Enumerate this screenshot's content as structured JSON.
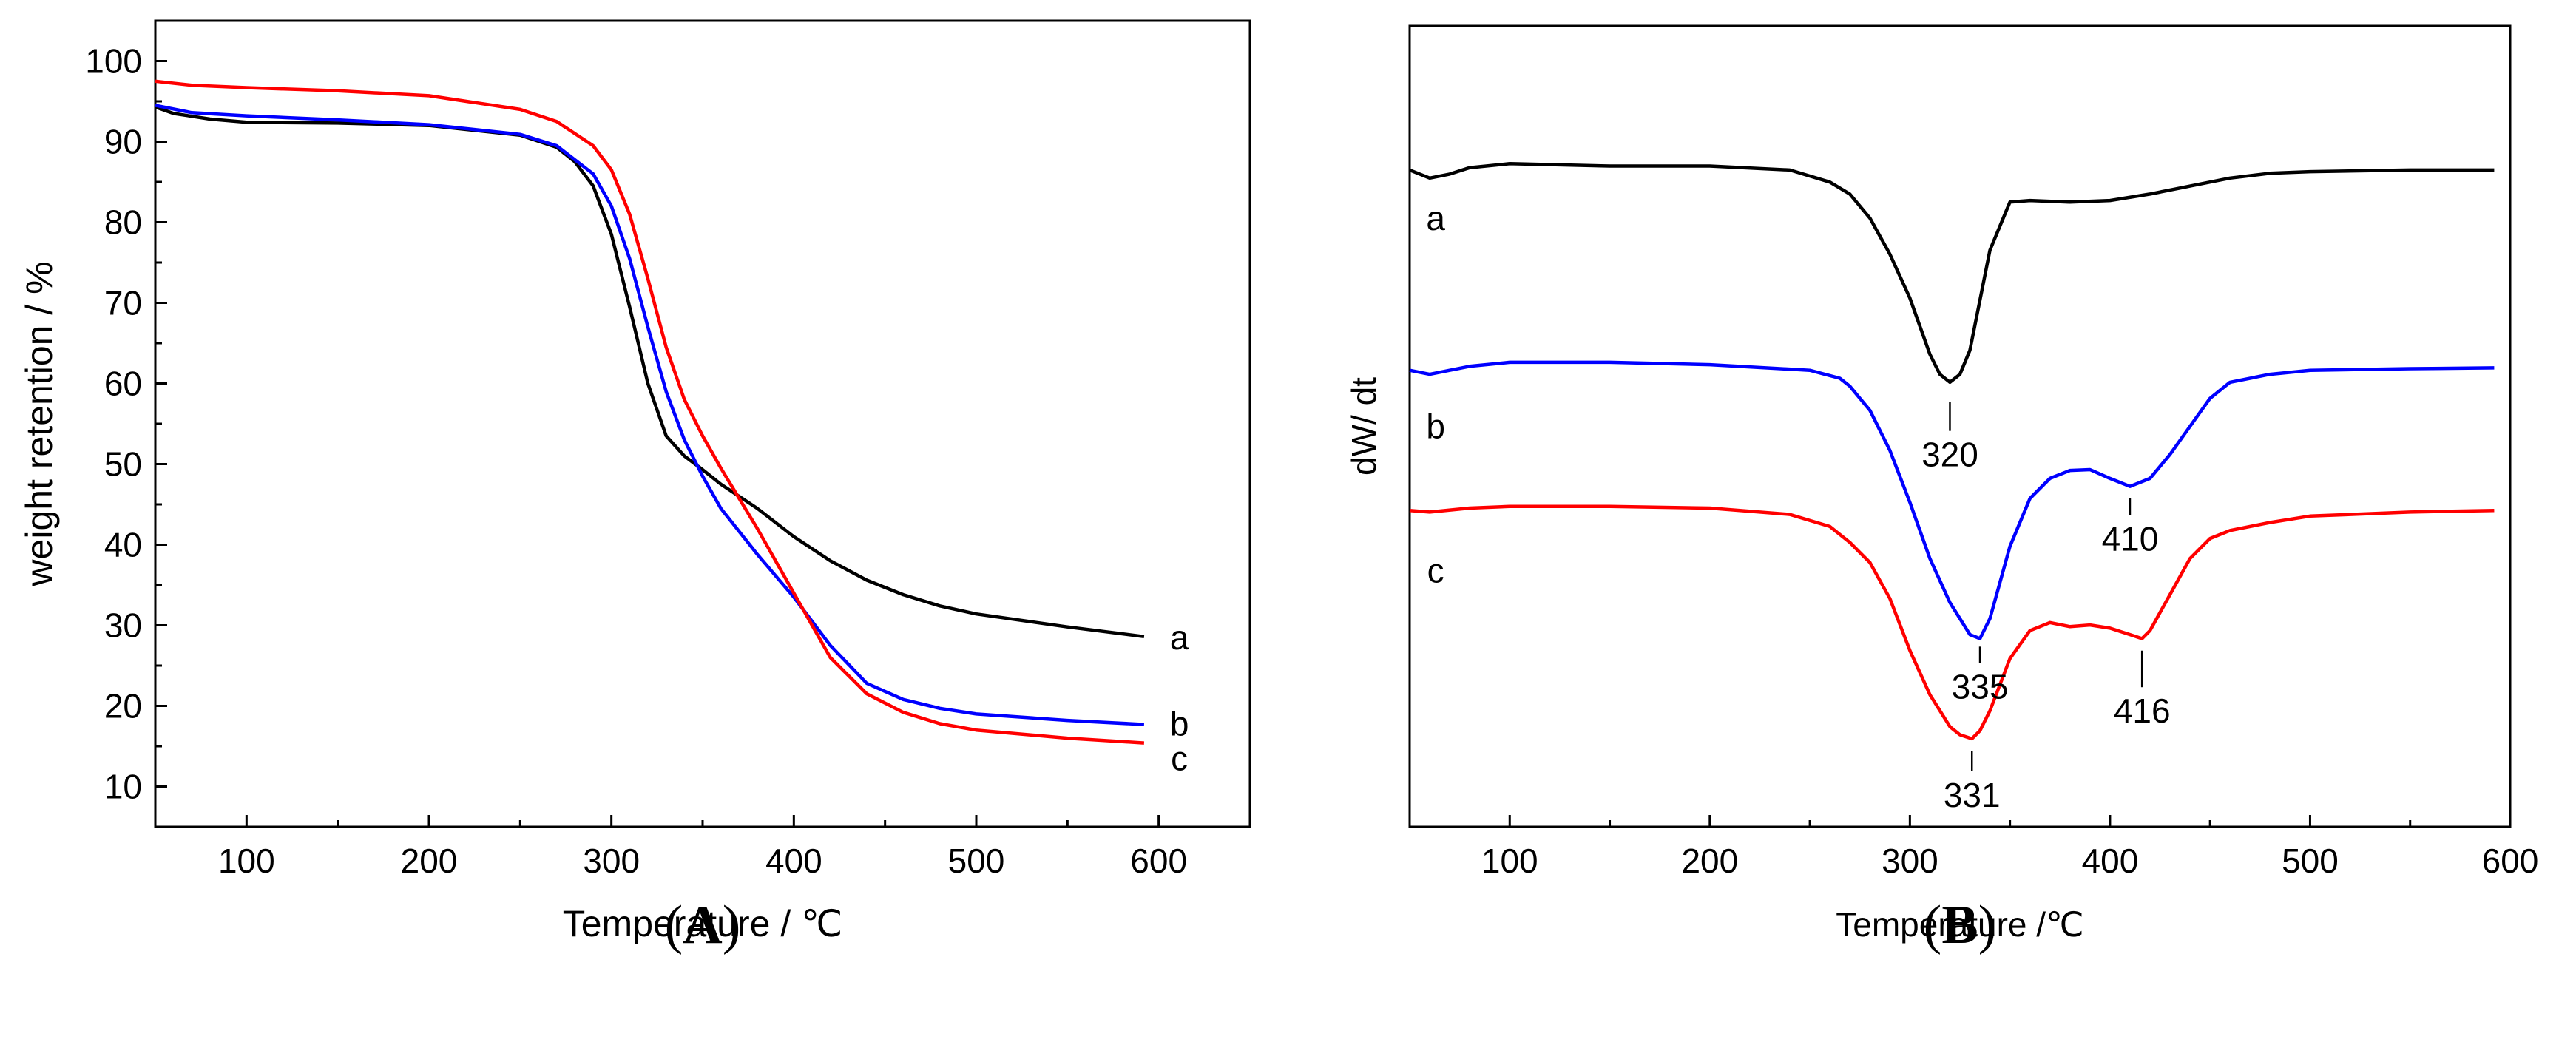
{
  "chart_data": [
    {
      "panel_label": "(A)",
      "panel_letter": "A",
      "type": "line",
      "title": "",
      "xlabel": "Temperature / ℃",
      "ylabel": "weight retention / %",
      "xlim": [
        50,
        650
      ],
      "ylim": [
        5,
        105
      ],
      "xticks": [
        100,
        200,
        300,
        400,
        500,
        600
      ],
      "yticks": [
        10,
        20,
        30,
        40,
        50,
        60,
        70,
        80,
        90,
        100
      ],
      "grid": false,
      "series": [
        {
          "name": "a",
          "color": "#000000",
          "x": [
            50,
            60,
            80,
            100,
            150,
            200,
            250,
            270,
            280,
            290,
            300,
            310,
            320,
            330,
            340,
            350,
            360,
            380,
            400,
            420,
            440,
            460,
            480,
            500,
            550,
            592
          ],
          "y": [
            94.3,
            93.5,
            92.8,
            92.4,
            92.3,
            92.0,
            90.8,
            89.3,
            87.5,
            84.5,
            78.5,
            69.5,
            60.0,
            53.5,
            51.0,
            49.3,
            47.5,
            44.5,
            41.0,
            38.0,
            35.6,
            33.8,
            32.4,
            31.4,
            29.8,
            28.6
          ]
        },
        {
          "name": "b",
          "color": "#0000ff",
          "x": [
            50,
            70,
            100,
            150,
            200,
            250,
            270,
            290,
            300,
            310,
            320,
            330,
            340,
            350,
            360,
            380,
            400,
            420,
            440,
            460,
            480,
            500,
            550,
            592
          ],
          "y": [
            94.5,
            93.6,
            93.2,
            92.7,
            92.1,
            90.9,
            89.5,
            86.0,
            82.0,
            75.5,
            67.0,
            59.0,
            53.0,
            48.5,
            44.5,
            38.8,
            33.5,
            27.5,
            22.8,
            20.8,
            19.7,
            19.0,
            18.2,
            17.7
          ]
        },
        {
          "name": "c",
          "color": "#ff0000",
          "x": [
            50,
            70,
            100,
            150,
            200,
            250,
            270,
            290,
            300,
            310,
            320,
            330,
            340,
            350,
            360,
            380,
            400,
            420,
            440,
            460,
            480,
            500,
            550,
            592
          ],
          "y": [
            97.5,
            97.0,
            96.7,
            96.3,
            95.7,
            94.0,
            92.5,
            89.5,
            86.5,
            81.0,
            73.0,
            64.5,
            58.0,
            53.5,
            49.5,
            42.0,
            34.0,
            26.0,
            21.5,
            19.2,
            17.8,
            17.0,
            16.0,
            15.4
          ]
        }
      ],
      "annotations": [
        {
          "text": "a",
          "x": 600,
          "y": 28.5
        },
        {
          "text": "b",
          "x": 600,
          "y": 17.8
        },
        {
          "text": "c",
          "x": 600,
          "y": 13.5
        }
      ]
    },
    {
      "panel_label": "(B)",
      "panel_letter": "B",
      "type": "line",
      "title": "",
      "xlabel": "Temperature /℃",
      "ylabel": "dW/ dt",
      "xlim": [
        50,
        600
      ],
      "ylim": [
        0,
        100
      ],
      "xticks": [
        100,
        200,
        300,
        400,
        500,
        600
      ],
      "yticks": [],
      "grid": false,
      "series": [
        {
          "name": "a",
          "color": "#000000",
          "x": [
            50,
            60,
            70,
            80,
            100,
            150,
            200,
            240,
            260,
            270,
            280,
            290,
            300,
            310,
            315,
            320,
            325,
            330,
            340,
            350,
            360,
            380,
            400,
            420,
            440,
            460,
            480,
            500,
            550,
            592
          ],
          "y": [
            82.0,
            81.0,
            81.5,
            82.3,
            82.8,
            82.5,
            82.5,
            82.0,
            80.5,
            79.0,
            76.0,
            71.5,
            66.0,
            59.0,
            56.5,
            55.5,
            56.5,
            59.5,
            72.0,
            78.0,
            78.2,
            78.0,
            78.2,
            79.0,
            80.0,
            81.0,
            81.6,
            81.8,
            82.0,
            82.0
          ]
        },
        {
          "name": "b",
          "color": "#0000ff",
          "x": [
            50,
            60,
            70,
            80,
            100,
            130,
            150,
            200,
            250,
            265,
            270,
            280,
            290,
            300,
            310,
            320,
            330,
            335,
            340,
            350,
            360,
            370,
            380,
            390,
            400,
            410,
            420,
            430,
            440,
            450,
            460,
            480,
            500,
            550,
            592
          ],
          "y": [
            57.0,
            56.5,
            57.0,
            57.5,
            58.0,
            58.0,
            58.0,
            57.7,
            57.0,
            56.0,
            55.0,
            52.0,
            47.0,
            40.5,
            33.5,
            28.0,
            24.0,
            23.5,
            26.0,
            35.0,
            41.0,
            43.5,
            44.5,
            44.6,
            43.5,
            42.5,
            43.5,
            46.5,
            50.0,
            53.5,
            55.5,
            56.5,
            57.0,
            57.2,
            57.3
          ]
        },
        {
          "name": "c",
          "color": "#ff0000",
          "x": [
            50,
            60,
            80,
            100,
            150,
            200,
            240,
            260,
            270,
            280,
            290,
            300,
            310,
            320,
            325,
            331,
            335,
            340,
            350,
            360,
            370,
            380,
            390,
            400,
            410,
            416,
            420,
            430,
            440,
            450,
            460,
            480,
            500,
            550,
            592
          ],
          "y": [
            39.5,
            39.3,
            39.8,
            40.0,
            40.0,
            39.8,
            39.0,
            37.5,
            35.5,
            33.0,
            28.5,
            22.0,
            16.5,
            12.5,
            11.5,
            11.0,
            12.0,
            14.5,
            21.0,
            24.5,
            25.5,
            25.0,
            25.2,
            24.8,
            24.0,
            23.5,
            24.5,
            29.0,
            33.5,
            36.0,
            37.0,
            38.0,
            38.8,
            39.3,
            39.5
          ]
        }
      ],
      "annotations": [
        {
          "text": "a",
          "x": 63,
          "y": 76
        },
        {
          "text": "b",
          "x": 63,
          "y": 50
        },
        {
          "text": "c",
          "x": 63,
          "y": 32
        },
        {
          "text": "320",
          "x": 320,
          "y": 45,
          "pointer_y": 53
        },
        {
          "text": "410",
          "x": 410,
          "y": 34.5,
          "pointer_y": 41
        },
        {
          "text": "335",
          "x": 335,
          "y": 16,
          "pointer_y": 22.5
        },
        {
          "text": "416",
          "x": 416,
          "y": 13,
          "pointer_y": 22
        },
        {
          "text": "331",
          "x": 331,
          "y": 2.5,
          "pointer_y": 9.5
        }
      ]
    }
  ]
}
